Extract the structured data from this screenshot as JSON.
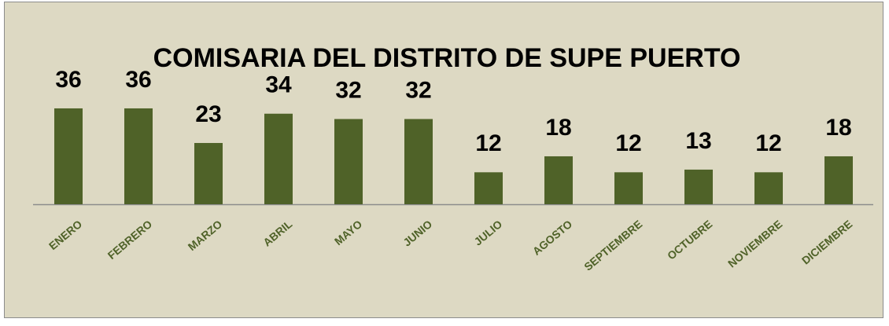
{
  "chart_data": {
    "type": "bar",
    "title": "COMISARIA DEL DISTRITO DE SUPE PUERTO",
    "categories": [
      "ENERO",
      "FEBRERO",
      "MARZO",
      "ABRIL",
      "MAYO",
      "JUNIO",
      "JULIO",
      "AGOSTO",
      "SEPTIEMBRE",
      "OCTUBRE",
      "NOVIEMBRE",
      "DICIEMBRE"
    ],
    "values": [
      36,
      36,
      23,
      34,
      32,
      32,
      12,
      18,
      12,
      13,
      12,
      18
    ],
    "color": "#4f6228",
    "ylim": [
      0,
      40
    ]
  }
}
